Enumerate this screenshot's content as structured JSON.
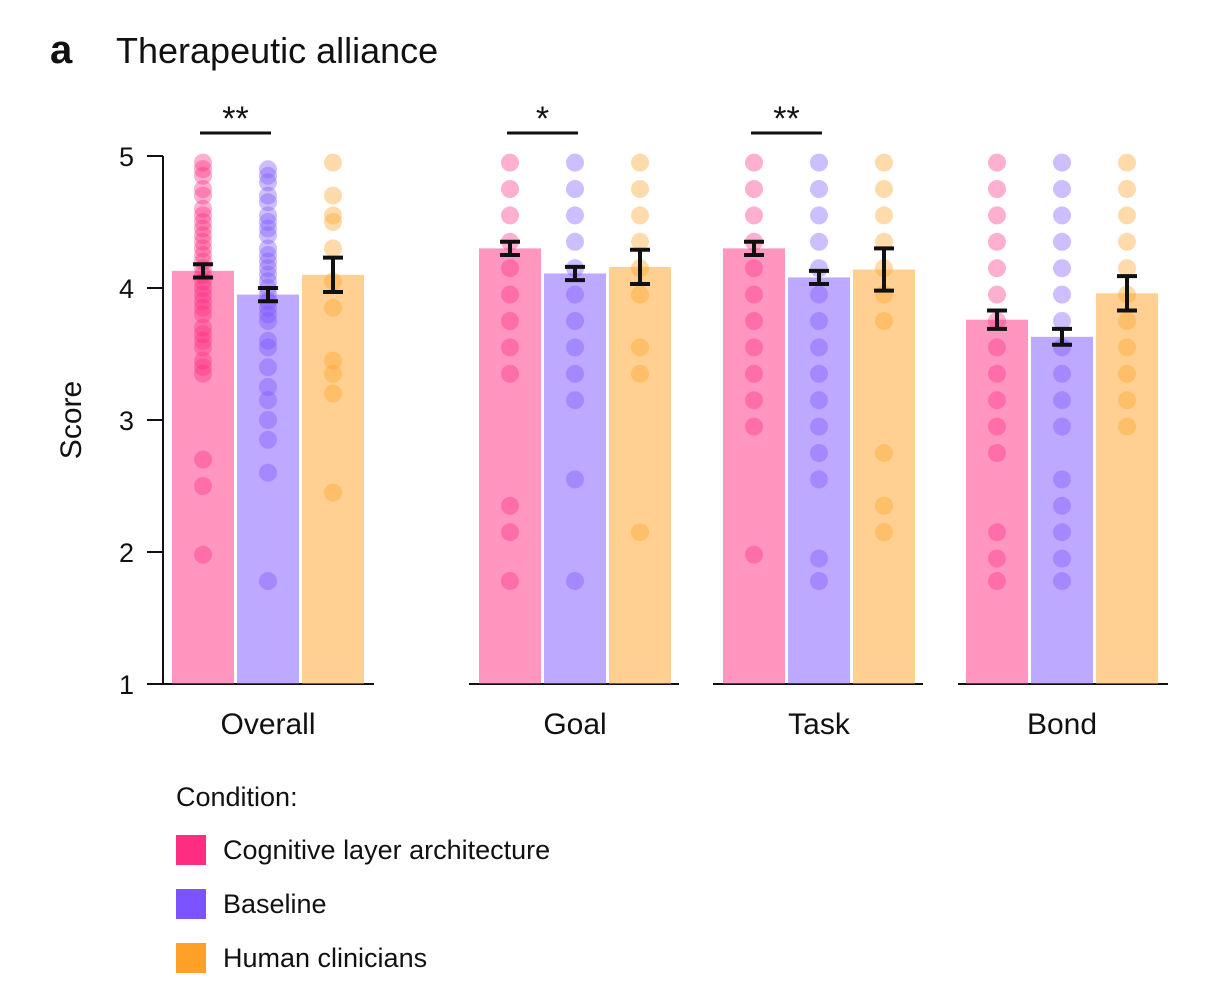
{
  "panel_label": "a",
  "chart_data": {
    "type": "bar",
    "title": "Therapeutic alliance",
    "ylabel": "Score",
    "xlabel": "",
    "ylim": [
      1,
      5
    ],
    "yticks": [
      1,
      2,
      3,
      4,
      5
    ],
    "categories": [
      "Overall",
      "Goal",
      "Task",
      "Bond"
    ],
    "series": [
      {
        "name": "Cognitive layer architecture",
        "color": "#ff2d82",
        "values": [
          4.13,
          4.3,
          4.3,
          3.76
        ],
        "errors": [
          0.05,
          0.05,
          0.05,
          0.07
        ],
        "points": [
          [
            4.95,
            4.9,
            4.85,
            4.75,
            4.7,
            4.6,
            4.55,
            4.5,
            4.45,
            4.4,
            4.35,
            4.3,
            4.25,
            4.2,
            4.15,
            4.1,
            4.05,
            4.0,
            3.95,
            3.9,
            3.85,
            3.8,
            3.7,
            3.65,
            3.6,
            3.55,
            3.45,
            3.4,
            3.35,
            2.7,
            2.5,
            1.98
          ],
          [
            4.95,
            4.75,
            4.55,
            4.35,
            4.15,
            3.95,
            3.75,
            3.55,
            3.35,
            2.35,
            2.15,
            1.78
          ],
          [
            4.95,
            4.75,
            4.55,
            4.35,
            4.15,
            3.95,
            3.75,
            3.55,
            3.35,
            3.15,
            2.95,
            1.98
          ],
          [
            4.95,
            4.75,
            4.55,
            4.35,
            4.15,
            3.95,
            3.75,
            3.55,
            3.35,
            3.15,
            2.95,
            2.75,
            2.15,
            1.95,
            1.78
          ]
        ]
      },
      {
        "name": "Baseline",
        "color": "#7b54ff",
        "values": [
          3.95,
          4.11,
          4.08,
          3.63
        ],
        "errors": [
          0.05,
          0.05,
          0.05,
          0.06
        ],
        "points": [
          [
            4.9,
            4.85,
            4.8,
            4.7,
            4.65,
            4.55,
            4.5,
            4.45,
            4.4,
            4.3,
            4.25,
            4.2,
            4.15,
            4.1,
            4.05,
            4.0,
            3.95,
            3.9,
            3.85,
            3.8,
            3.75,
            3.6,
            3.55,
            3.4,
            3.25,
            3.15,
            3.0,
            2.85,
            2.6,
            1.78
          ],
          [
            4.95,
            4.75,
            4.55,
            4.35,
            4.15,
            3.95,
            3.75,
            3.55,
            3.35,
            3.15,
            2.55,
            1.78
          ],
          [
            4.95,
            4.75,
            4.55,
            4.35,
            4.15,
            3.95,
            3.75,
            3.55,
            3.35,
            3.15,
            2.95,
            2.75,
            2.55,
            1.95,
            1.78
          ],
          [
            4.95,
            4.75,
            4.55,
            4.35,
            4.15,
            3.95,
            3.75,
            3.55,
            3.35,
            3.15,
            2.95,
            2.55,
            2.35,
            2.15,
            1.95,
            1.78
          ]
        ]
      },
      {
        "name": "Human clinicians",
        "color": "#ffa126",
        "values": [
          4.1,
          4.16,
          4.14,
          3.96
        ],
        "errors": [
          0.13,
          0.13,
          0.16,
          0.13
        ],
        "points": [
          [
            4.95,
            4.7,
            4.55,
            4.5,
            4.3,
            4.05,
            3.85,
            3.45,
            3.35,
            3.2,
            2.45
          ],
          [
            4.95,
            4.75,
            4.55,
            4.35,
            4.15,
            3.95,
            3.55,
            3.35,
            2.15
          ],
          [
            4.95,
            4.75,
            4.55,
            4.35,
            4.15,
            3.95,
            3.75,
            2.75,
            2.35,
            2.15
          ],
          [
            4.95,
            4.75,
            4.55,
            4.35,
            4.15,
            3.95,
            3.75,
            3.55,
            3.35,
            3.15,
            2.95
          ]
        ]
      }
    ],
    "significance": [
      {
        "category": "Overall",
        "label": "**"
      },
      {
        "category": "Goal",
        "label": "*"
      },
      {
        "category": "Task",
        "label": "**"
      }
    ]
  },
  "legend": {
    "title": "Condition:",
    "items": [
      {
        "label": "Cognitive layer architecture",
        "color": "#ff2d82"
      },
      {
        "label": "Baseline",
        "color": "#7b54ff"
      },
      {
        "label": "Human clinicians",
        "color": "#ffa126"
      }
    ]
  }
}
